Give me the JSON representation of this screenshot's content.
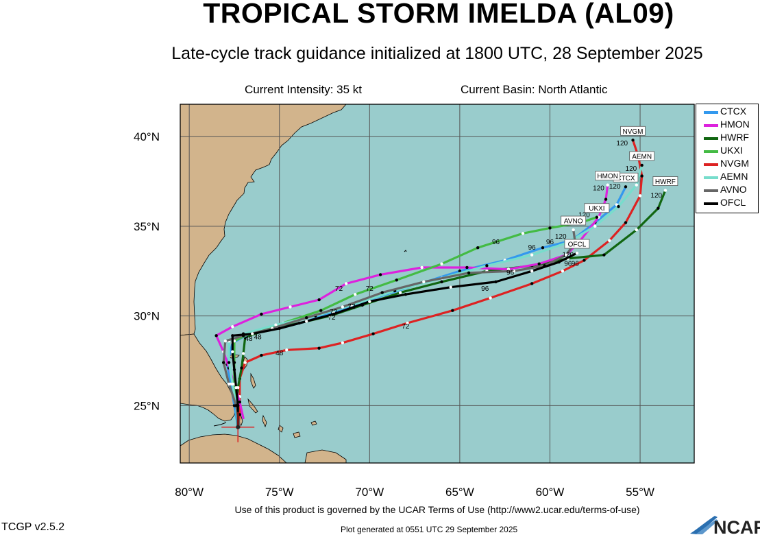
{
  "header": {
    "title": "TROPICAL STORM IMELDA (AL09)",
    "subtitle": "Late-cycle track guidance initialized at 1800 UTC, 28 September 2025",
    "intensity": "Current Intensity: 35 kt",
    "basin": "Current Basin: North Atlantic"
  },
  "axes": {
    "lon_ticks": [
      "80°W",
      "75°W",
      "70°W",
      "65°W",
      "60°W",
      "55°W"
    ],
    "lat_ticks": [
      "40°N",
      "35°N",
      "30°N",
      "25°N"
    ]
  },
  "colors": {
    "ocean": "#99cccc",
    "land": "#d2b48c",
    "grid": "#555555"
  },
  "legend": [
    {
      "name": "CTCX",
      "color": "#3399ee"
    },
    {
      "name": "HMON",
      "color": "#dd22dd"
    },
    {
      "name": "HWRF",
      "color": "#116611"
    },
    {
      "name": "UKXI",
      "color": "#44bb44"
    },
    {
      "name": "NVGM",
      "color": "#dd2222"
    },
    {
      "name": "AEMN",
      "color": "#77ddcc"
    },
    {
      "name": "AVNO",
      "color": "#666666"
    },
    {
      "name": "OFCL",
      "color": "#000000"
    }
  ],
  "tracks": [
    {
      "name": "NVGM",
      "color": "#dd2222",
      "end_label": "NVGM",
      "points": [
        [
          -77.3,
          23.8
        ],
        [
          -77.2,
          24.5
        ],
        [
          -77.2,
          25.5
        ],
        [
          -77.2,
          26.5
        ],
        [
          -76.9,
          27.4
        ],
        [
          -76.0,
          27.8
        ],
        [
          -74.6,
          28.1
        ],
        [
          -72.8,
          28.2
        ],
        [
          -71.5,
          28.5
        ],
        [
          -69.8,
          29.0
        ],
        [
          -67.9,
          29.6
        ],
        [
          -65.4,
          30.3
        ],
        [
          -63.3,
          31.0
        ],
        [
          -61.0,
          31.8
        ],
        [
          -59.3,
          32.5
        ],
        [
          -58.1,
          33.1
        ],
        [
          -56.7,
          34.2
        ],
        [
          -55.8,
          35.2
        ],
        [
          -55.0,
          36.7
        ],
        [
          -54.9,
          37.8
        ],
        [
          -55.1,
          38.9
        ],
        [
          -55.4,
          39.8
        ]
      ],
      "hour_labels": [
        {
          "text": "48",
          "lon": -75.0,
          "lat": 27.8
        },
        {
          "text": "72",
          "lon": -68.0,
          "lat": 29.3
        },
        {
          "text": "96",
          "lon": -58.6,
          "lat": 32.8
        },
        {
          "text": "120",
          "lon": -56.0,
          "lat": 39.5
        }
      ]
    },
    {
      "name": "HWRF",
      "color": "#116611",
      "end_label": "HWRF",
      "points": [
        [
          -77.3,
          23.8
        ],
        [
          -77.4,
          24.8
        ],
        [
          -77.3,
          26.0
        ],
        [
          -77.1,
          27.1
        ],
        [
          -77.0,
          27.9
        ],
        [
          -76.9,
          28.8
        ],
        [
          -75.8,
          29.2
        ],
        [
          -73.9,
          29.6
        ],
        [
          -72.2,
          30.0
        ],
        [
          -70.4,
          30.6
        ],
        [
          -68.3,
          31.3
        ],
        [
          -66.0,
          31.9
        ],
        [
          -63.5,
          32.5
        ],
        [
          -61.0,
          32.8
        ],
        [
          -59.0,
          33.2
        ],
        [
          -57.0,
          33.4
        ],
        [
          -55.2,
          34.8
        ],
        [
          -54.0,
          36.0
        ],
        [
          -53.6,
          37.0
        ]
      ],
      "hour_labels": [
        {
          "text": "48",
          "lon": -76.7,
          "lat": 28.6
        },
        {
          "text": "72",
          "lon": -71.0,
          "lat": 30.4
        },
        {
          "text": "96",
          "lon": -59.0,
          "lat": 32.8
        },
        {
          "text": "120",
          "lon": -54.1,
          "lat": 36.6
        }
      ]
    },
    {
      "name": "CTCX",
      "color": "#3399ee",
      "end_label": "CTCX",
      "points": [
        [
          -77.3,
          23.8
        ],
        [
          -77.5,
          25.0
        ],
        [
          -77.7,
          26.2
        ],
        [
          -77.9,
          27.3
        ],
        [
          -77.6,
          28.5
        ],
        [
          -76.5,
          29.1
        ],
        [
          -75.0,
          29.3
        ],
        [
          -73.5,
          29.7
        ],
        [
          -72.0,
          30.2
        ],
        [
          -70.0,
          30.9
        ],
        [
          -67.5,
          31.7
        ],
        [
          -65.0,
          32.5
        ],
        [
          -62.5,
          33.1
        ],
        [
          -60.4,
          33.8
        ],
        [
          -58.8,
          34.2
        ],
        [
          -57.5,
          35.2
        ],
        [
          -56.3,
          36.2
        ],
        [
          -55.8,
          37.2
        ]
      ],
      "hour_labels": [
        {
          "text": "72",
          "lon": -71.0,
          "lat": 30.4
        },
        {
          "text": "96",
          "lon": -61.0,
          "lat": 33.7
        },
        {
          "text": "120",
          "lon": -56.4,
          "lat": 37.1
        }
      ]
    },
    {
      "name": "HMON",
      "color": "#dd22dd",
      "end_label": "HMON",
      "points": [
        [
          -77.0,
          24.3
        ],
        [
          -77.2,
          25.2
        ],
        [
          -77.5,
          26.2
        ],
        [
          -77.8,
          27.1
        ],
        [
          -78.1,
          28.0
        ],
        [
          -78.5,
          28.9
        ],
        [
          -77.6,
          29.4
        ],
        [
          -76.0,
          30.1
        ],
        [
          -74.4,
          30.5
        ],
        [
          -72.8,
          30.9
        ],
        [
          -71.3,
          31.8
        ],
        [
          -69.4,
          32.3
        ],
        [
          -67.1,
          32.7
        ],
        [
          -64.6,
          32.7
        ],
        [
          -62.3,
          32.6
        ],
        [
          -60.6,
          32.9
        ],
        [
          -59.1,
          33.4
        ],
        [
          -58.4,
          34.1
        ],
        [
          -57.3,
          35.5
        ],
        [
          -56.9,
          36.5
        ],
        [
          -56.8,
          37.3
        ]
      ],
      "hour_labels": [
        {
          "text": "72",
          "lon": -71.7,
          "lat": 31.4
        },
        {
          "text": "96",
          "lon": -60.0,
          "lat": 34.0
        },
        {
          "text": "120",
          "lon": -57.3,
          "lat": 37.0
        }
      ]
    },
    {
      "name": "UKXI",
      "color": "#44bb44",
      "end_label": "UKXI",
      "points": [
        [
          -77.3,
          23.8
        ],
        [
          -77.3,
          25.0
        ],
        [
          -77.5,
          26.2
        ],
        [
          -77.5,
          27.4
        ],
        [
          -77.5,
          28.6
        ],
        [
          -76.5,
          29.1
        ],
        [
          -74.8,
          29.6
        ],
        [
          -72.7,
          30.3
        ],
        [
          -70.8,
          31.2
        ],
        [
          -68.5,
          32.0
        ],
        [
          -66.0,
          32.9
        ],
        [
          -64.0,
          33.8
        ],
        [
          -61.5,
          34.6
        ],
        [
          -60.0,
          34.9
        ],
        [
          -58.3,
          35.2
        ],
        [
          -57.4,
          35.5
        ]
      ],
      "hour_labels": [
        {
          "text": "72",
          "lon": -70.0,
          "lat": 31.4
        },
        {
          "text": "96",
          "lon": -63.0,
          "lat": 34.0
        },
        {
          "text": "120",
          "lon": -58.1,
          "lat": 35.5
        }
      ]
    },
    {
      "name": "AEMN",
      "color": "#77ddcc",
      "end_label": "AEMN",
      "points": [
        [
          -77.3,
          23.8
        ],
        [
          -77.4,
          25.0
        ],
        [
          -77.6,
          26.2
        ],
        [
          -77.8,
          27.4
        ],
        [
          -77.8,
          28.6
        ],
        [
          -77.0,
          29.0
        ],
        [
          -75.2,
          29.5
        ],
        [
          -73.0,
          30.0
        ],
        [
          -71.0,
          30.6
        ],
        [
          -68.6,
          31.4
        ],
        [
          -66.0,
          32.1
        ],
        [
          -63.5,
          32.8
        ],
        [
          -61.0,
          33.4
        ],
        [
          -59.0,
          34.1
        ],
        [
          -57.5,
          35.0
        ],
        [
          -56.2,
          36.1
        ],
        [
          -55.2,
          37.3
        ],
        [
          -54.9,
          38.4
        ]
      ],
      "hour_labels": [
        {
          "text": "120",
          "lon": -55.5,
          "lat": 38.1
        }
      ]
    },
    {
      "name": "AVNO",
      "color": "#666666",
      "end_label": "AVNO",
      "points": [
        [
          -77.2,
          23.8
        ],
        [
          -77.4,
          25.0
        ],
        [
          -77.8,
          26.2
        ],
        [
          -78.1,
          27.4
        ],
        [
          -78.0,
          28.6
        ],
        [
          -77.0,
          28.9
        ],
        [
          -75.4,
          29.3
        ],
        [
          -73.5,
          29.9
        ],
        [
          -71.5,
          30.5
        ],
        [
          -69.3,
          31.3
        ],
        [
          -67.0,
          31.9
        ],
        [
          -64.5,
          32.4
        ],
        [
          -62.0,
          32.5
        ],
        [
          -60.3,
          32.8
        ],
        [
          -59.1,
          33.4
        ],
        [
          -58.6,
          34.1
        ],
        [
          -58.7,
          34.8
        ]
      ],
      "hour_labels": [
        {
          "text": "72",
          "lon": -72.0,
          "lat": 30.1
        },
        {
          "text": "96",
          "lon": -62.2,
          "lat": 32.3
        },
        {
          "text": "120",
          "lon": -59.4,
          "lat": 34.3
        }
      ]
    },
    {
      "name": "OFCL",
      "color": "#000000",
      "end_label": "OFCL",
      "points": [
        [
          -77.3,
          23.8
        ],
        [
          -77.3,
          25.0
        ],
        [
          -77.4,
          26.0
        ],
        [
          -77.5,
          27.0
        ],
        [
          -77.6,
          28.0
        ],
        [
          -77.6,
          28.9
        ],
        [
          -76.5,
          29.0
        ],
        [
          -75.0,
          29.3
        ],
        [
          -73.5,
          29.7
        ],
        [
          -72.0,
          30.1
        ],
        [
          -70.0,
          30.8
        ],
        [
          -68.0,
          31.2
        ],
        [
          -65.5,
          31.6
        ],
        [
          -63.0,
          31.9
        ],
        [
          -61.0,
          32.5
        ],
        [
          -59.5,
          33.0
        ],
        [
          -58.5,
          33.5
        ]
      ],
      "hour_labels": [
        {
          "text": "48",
          "lon": -76.2,
          "lat": 28.7
        },
        {
          "text": "72",
          "lon": -72.1,
          "lat": 29.8
        },
        {
          "text": "96",
          "lon": -63.6,
          "lat": 31.4
        },
        {
          "text": "120",
          "lon": -59.0,
          "lat": 33.3
        }
      ]
    }
  ],
  "footer": {
    "terms": "Use of this product is governed by the UCAR Terms of Use (http://www2.ucar.edu/terms-of-use)",
    "version": "TCGP v2.5.2",
    "generated": "Plot generated at 0551 UTC  29 September 2025",
    "logo": "NCAR"
  }
}
